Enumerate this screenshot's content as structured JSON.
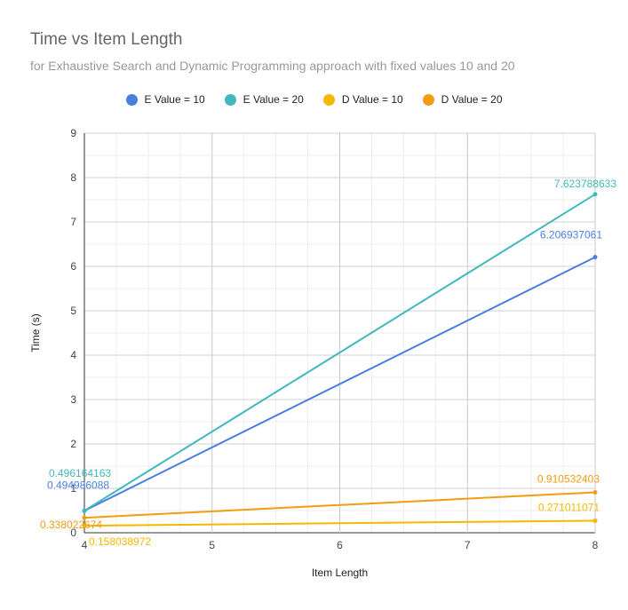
{
  "chart_data": {
    "type": "line",
    "title": "Time vs Item Length",
    "subtitle": "for Exhaustive Search and Dynamic Programming approach with fixed values 10 and 20",
    "xlabel": "Item Length",
    "ylabel": "Time (s)",
    "xlim": [
      4,
      8
    ],
    "ylim": [
      0,
      9
    ],
    "x_ticks": [
      "4",
      "5",
      "6",
      "7",
      "8"
    ],
    "y_ticks": [
      "0",
      "1",
      "2",
      "3",
      "4",
      "5",
      "6",
      "7",
      "8",
      "9"
    ],
    "grid": true,
    "legend_position": "top",
    "series": [
      {
        "name": "E Value = 10",
        "color": "#4a7fe0",
        "x": [
          4,
          8
        ],
        "y": [
          0.494986088,
          6.206937061
        ],
        "labels": [
          "0.494986088",
          "6.206937061"
        ]
      },
      {
        "name": "E Value = 20",
        "color": "#42b8bc",
        "x": [
          4,
          8
        ],
        "y": [
          0.496164163,
          7.623788633
        ],
        "labels": [
          "0.496164163",
          "7.623788633"
        ]
      },
      {
        "name": "D Value = 10",
        "color": "#f5b800",
        "x": [
          4,
          8
        ],
        "y": [
          0.158038972,
          0.271011071
        ],
        "labels": [
          "0.158038972",
          "0.271011071"
        ]
      },
      {
        "name": "D Value = 20",
        "color": "#f39c12",
        "x": [
          4,
          8
        ],
        "y": [
          0.338022674,
          0.910532403
        ],
        "labels": [
          "0.338022674",
          "0.910532403"
        ]
      }
    ]
  }
}
